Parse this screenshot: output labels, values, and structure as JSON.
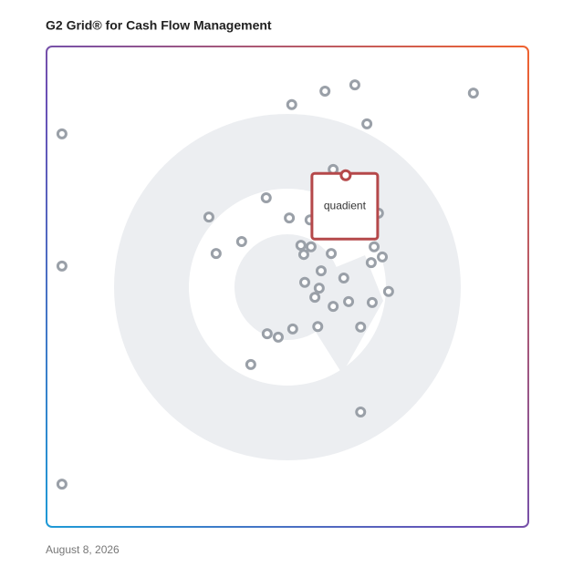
{
  "chart_data": {
    "type": "scatter",
    "title": "G2 Grid® for Cash Flow Management",
    "date": "August 8, 2026",
    "xlim": [
      0,
      100
    ],
    "ylim": [
      0,
      100
    ],
    "color": "#9aa0a8",
    "x": [
      3.2,
      3.2,
      3.2,
      50.9,
      57.8,
      64.0,
      88.6,
      66.5,
      59.5,
      45.6,
      33.7,
      50.4,
      54.7,
      68.9,
      40.5,
      35.2,
      52.8,
      54.9,
      53.4,
      59.1,
      68.0,
      69.7,
      67.4,
      57.0,
      61.7,
      53.6,
      56.6,
      55.7,
      62.7,
      59.5,
      67.6,
      71.0,
      45.8,
      48.1,
      51.1,
      56.3,
      65.2,
      42.4,
      65.2
    ],
    "values": [
      81.8,
      54.3,
      8.9,
      87.9,
      90.7,
      92.0,
      90.3,
      83.9,
      74.4,
      68.5,
      64.5,
      64.3,
      63.9,
      65.3,
      59.4,
      56.9,
      58.6,
      58.3,
      56.7,
      56.9,
      58.3,
      56.2,
      55.0,
      53.3,
      51.8,
      50.9,
      49.7,
      47.8,
      46.9,
      45.9,
      46.7,
      49.0,
      40.2,
      39.5,
      41.2,
      41.7,
      41.6,
      33.8,
      23.9
    ],
    "highlight": {
      "label": "quadient",
      "x": 62.1,
      "y": 73.2,
      "color": "#b5484a"
    }
  }
}
